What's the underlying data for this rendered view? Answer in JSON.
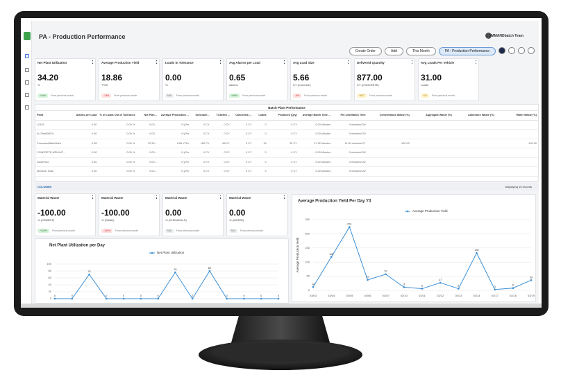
{
  "header": {
    "title": "PA - Production Performance",
    "user": "COMMANDbatch Team",
    "buttons": [
      "Create Order",
      "Add",
      "This Month",
      "PA - Production Performance"
    ]
  },
  "kpis": [
    {
      "label": "Net Plant Utilization",
      "value": "34.20",
      "unit": "%",
      "badge": "+34%",
      "badge_color": "green",
      "note": "From previous month"
    },
    {
      "label": "Average Production Yield",
      "value": "18.86",
      "unit": "Y³/Hr",
      "badge": "-14%",
      "badge_color": "red",
      "note": "From previous month"
    },
    {
      "label": "Loads in Tolerance",
      "value": "0.00",
      "unit": "%",
      "badge": "N/A",
      "badge_color": "gray",
      "note": "From previous month"
    },
    {
      "label": "Avg Alarms per Load",
      "value": "0.65",
      "unit": "Alarms",
      "badge": "+65%",
      "badge_color": "green",
      "note": "From previous month"
    },
    {
      "label": "Avg Load Size",
      "value": "5.66",
      "unit": "CY (Concrete)",
      "badge": "-6%",
      "badge_color": "red",
      "note": "From previous month"
    },
    {
      "label": "Delivered Quantity",
      "value": "877.00",
      "unit": "CY (CONCRETE)",
      "badge": "+877",
      "badge_color": "yellow",
      "note": "From previous month"
    },
    {
      "label": "Avg Loads Per Vehicle",
      "value": "31.00",
      "unit": "Loads",
      "badge": "+31",
      "badge_color": "yellow",
      "note": "From previous month"
    }
  ],
  "table": {
    "title": "Batch Plant Performance",
    "columns": [
      "Plant",
      "Alarms per Load",
      "% of Loads Out of Tolerance",
      "Net Plan...",
      "Average Production ...",
      "Schedule...",
      "Ticketed ...",
      "Cancelled (...",
      "Loads",
      "Produced (Qty)",
      "Average Batch Time ...",
      "Per-Unit Batch Time",
      "Cementitious Waste (%)",
      "Aggregate Waste (%)",
      "Admixture Waste (%)",
      "Water Waste (%)"
    ],
    "rows": [
      [
        "12345",
        "0.00",
        "0.00 %",
        "0.00...",
        "0 y³/hr",
        "0 CY",
        "0 CY",
        "0 CY",
        "0",
        "0 CY",
        "0.00 Minutes",
        "0 minutes/CW",
        null,
        null,
        null,
        null
      ],
      [
        "AL Plant00001",
        "0.00",
        "0.00 %",
        "0.00...",
        "0 y³/hr",
        "0 CY",
        "0 CY",
        "0 CY",
        "0",
        "0 CY",
        "0.00 Minutes",
        "0 minutes/CW",
        null,
        null,
        null,
        null
      ],
      [
        "CommandBatchWeb",
        "2.08",
        "0.00 %",
        "32.30...",
        "5.66 Y³/Hr",
        "182 CY",
        "86 CY",
        "0 CY",
        "16",
        "32 CY",
        "27.92 Minutes",
        "11.84 minutes/CY",
        "-100.00",
        null,
        null,
        "-100.00"
      ],
      [
        "CONCRETE-MPLANT...",
        "0.00",
        "0.00 %",
        "0.00...",
        "0 y³/hr",
        "0 CY",
        "0 CY",
        "0 CY",
        "0",
        "0 CY",
        "0.00 Minutes",
        "0 minutes/CW",
        null,
        null,
        null,
        null
      ],
      [
        "IndiaPlant",
        "0.00",
        "0.00 %",
        "0.00...",
        "0 y³/hr",
        "0 CY",
        "0 CY",
        "0 CY",
        "0",
        "0 CY",
        "0.00 Minutes",
        "0 minutes/CW",
        null,
        null,
        null,
        null
      ],
      [
        "Mumbai, India",
        "0.00",
        "0.00 %",
        "0.00...",
        "0 y³/hr",
        "0 CY",
        "0 CY",
        "0 CY",
        "0",
        "0 CY",
        "0.00 Minutes",
        "0 minutes/CW",
        null,
        null,
        null,
        null
      ]
    ]
  },
  "footer": {
    "columns_button": "COLUMNS",
    "records": "Displaying 15 records"
  },
  "waste_kpis": [
    {
      "label": "Material Waste",
      "value": "-100.00",
      "unit": "% (CEMENT)",
      "badge": "+100%",
      "badge_color": "green",
      "note": "From previous month"
    },
    {
      "label": "Material Waste",
      "value": "-100.00",
      "unit": "% (SAND)",
      "badge": "-100%",
      "badge_color": "red",
      "note": "From previous month"
    },
    {
      "label": "Material Waste",
      "value": "0.00",
      "unit": "% (CHEMICALS)",
      "badge": "N/A",
      "badge_color": "gray",
      "note": "From previous month"
    },
    {
      "label": "Material Waste",
      "value": "0.00",
      "unit": "% (WATER)",
      "badge": "N/A",
      "badge_color": "gray",
      "note": "From previous month"
    }
  ],
  "chart_data": [
    {
      "type": "line",
      "title": "Net Plant Utilization per Day",
      "color": "#3a8fd6",
      "categories": [
        null,
        null,
        null,
        null,
        null,
        null,
        null,
        null,
        null,
        null,
        null,
        null,
        null,
        null
      ],
      "series": [
        {
          "name": "Net Plant Utilization",
          "color": "#3a8fd6",
          "values": [
            0,
            0,
            70,
            0,
            0,
            0,
            0,
            76,
            0,
            80,
            0,
            0,
            0,
            0
          ]
        }
      ],
      "ylim": [
        0,
        100
      ],
      "yticks": [
        0,
        20,
        40,
        60,
        80,
        100
      ],
      "grid": true
    },
    {
      "type": "line",
      "title": "Average Production Yield Per Day Y3",
      "y_label": "Average Production Yield",
      "categories": [
        "03/03",
        "03/04",
        "03/05",
        "03/06",
        "03/07",
        "03/10",
        "03/11",
        "03/12",
        "03/13",
        "03/14",
        "03/17",
        "03/18",
        "03/19"
      ],
      "series": [
        {
          "name": "Average Production Yield",
          "color": "#3a8fd6",
          "values": [
            12,
            118,
            224,
            37,
            57,
            11,
            6,
            27,
            6,
            132,
            3,
            8,
            36
          ]
        }
      ],
      "ylim": [
        0,
        250
      ],
      "yticks": [
        0,
        50,
        100,
        150,
        200,
        250
      ],
      "grid": true
    }
  ]
}
